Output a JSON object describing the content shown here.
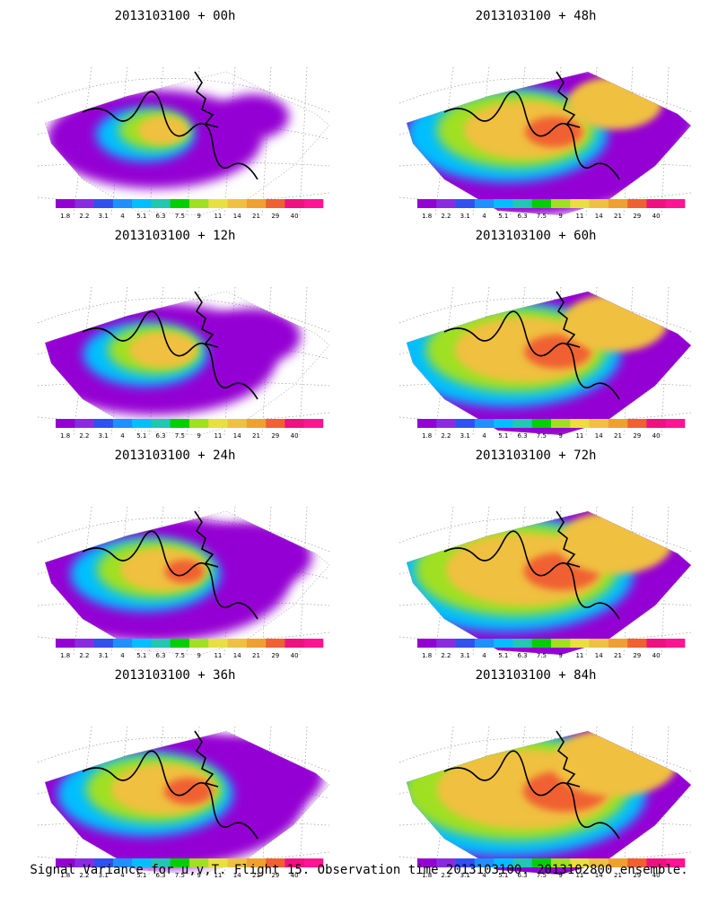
{
  "panels": [
    {
      "title": "2013103100 + 00h",
      "lead": 0
    },
    {
      "title": "2013103100 + 48h",
      "lead": 48
    },
    {
      "title": "2013103100 + 12h",
      "lead": 12
    },
    {
      "title": "2013103100 + 60h",
      "lead": 60
    },
    {
      "title": "2013103100 + 24h",
      "lead": 24
    },
    {
      "title": "2013103100 + 72h",
      "lead": 72
    },
    {
      "title": "2013103100 + 36h",
      "lead": 36
    },
    {
      "title": "2013103100 + 84h",
      "lead": 84
    }
  ],
  "colorbar": {
    "labels": [
      "1.8",
      "2.2",
      "3.1",
      "4",
      "5.1",
      "6.3",
      "7.5",
      "9",
      "11",
      "14",
      "21",
      "29",
      "40"
    ],
    "colors": [
      "#9400d3",
      "#8a2be2",
      "#3050f0",
      "#1e90ff",
      "#00bfff",
      "#20c8b0",
      "#00d000",
      "#a0e020",
      "#e8e040",
      "#f0c040",
      "#f0a030",
      "#f06030",
      "#f01080",
      "#ff1493"
    ]
  },
  "caption": "Signal Variance for u,v,T. Flight 15. Observation time 2013103100. 2013102800 ensemble."
}
